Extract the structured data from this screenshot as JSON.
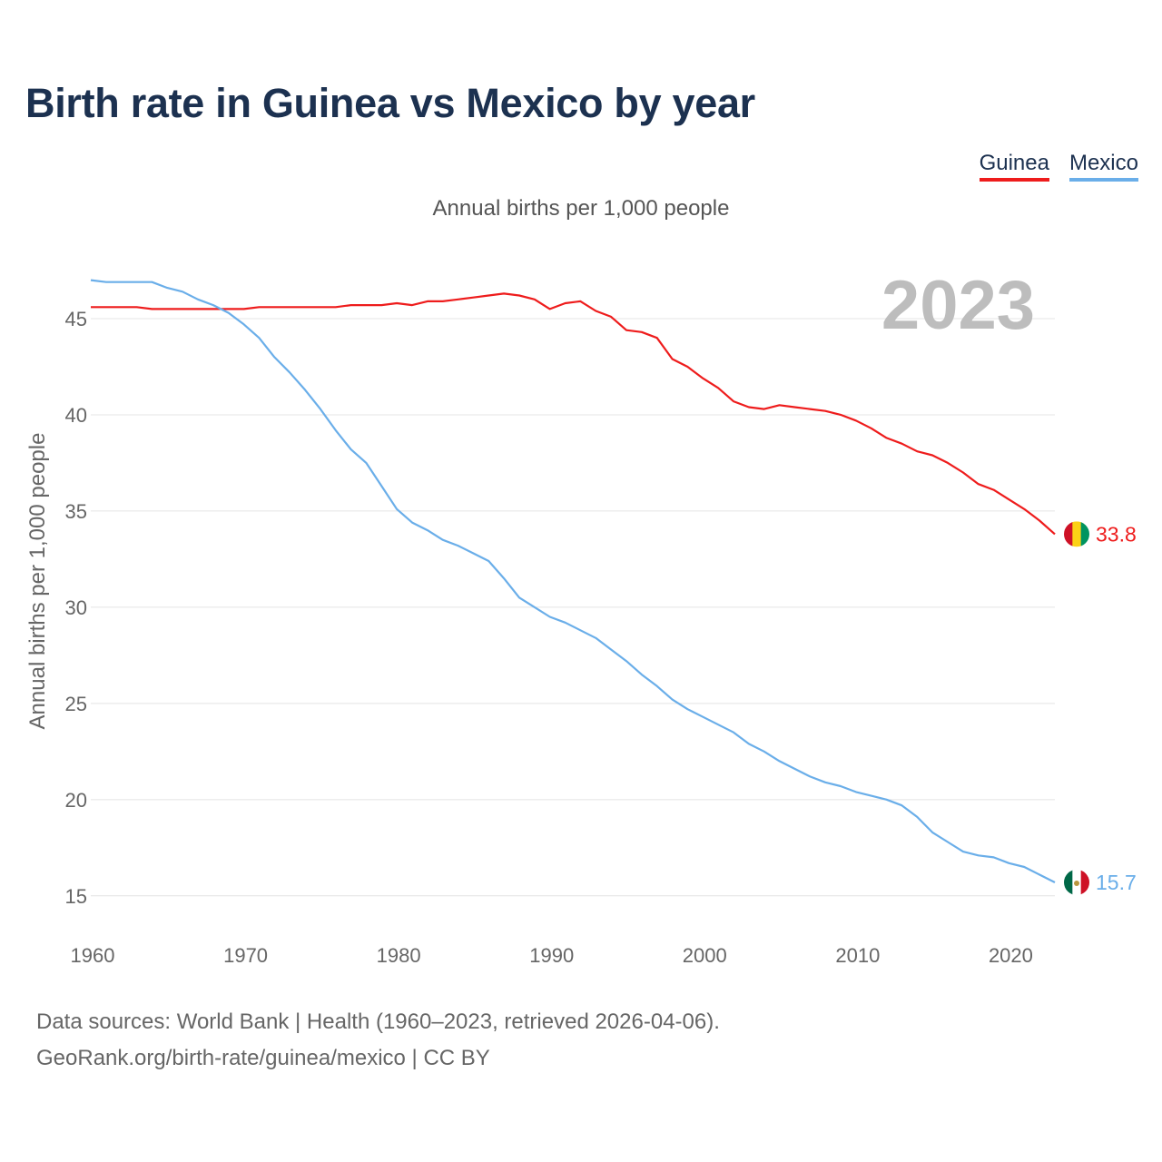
{
  "title": "Birth rate in Guinea vs Mexico by year",
  "subtitle": "Annual births per 1,000 people",
  "legend": [
    {
      "name": "Guinea",
      "color": "#ee1c1c"
    },
    {
      "name": "Mexico",
      "color": "#6aaee9"
    }
  ],
  "footer": {
    "line1": "Data sources: World Bank | Health (1960–2023, retrieved 2026-04-06).",
    "line2": "GeoRank.org/birth-rate/guinea/mexico | CC BY"
  },
  "chart_data": {
    "type": "line",
    "title": "Birth rate in Guinea vs Mexico by year",
    "subtitle": "Annual births per 1,000 people",
    "xlabel": "",
    "ylabel": "Annual births per 1,000 people",
    "xlim": [
      1960,
      2023
    ],
    "ylim": [
      15,
      47
    ],
    "x_ticks": [
      1960,
      1970,
      1980,
      1990,
      2000,
      2010,
      2020
    ],
    "y_ticks": [
      15,
      20,
      25,
      30,
      35,
      40,
      45
    ],
    "grid": true,
    "legend_position": "top-right",
    "current_year": "2023",
    "x": [
      1960,
      1961,
      1962,
      1963,
      1964,
      1965,
      1966,
      1967,
      1968,
      1969,
      1970,
      1971,
      1972,
      1973,
      1974,
      1975,
      1976,
      1977,
      1978,
      1979,
      1980,
      1981,
      1982,
      1983,
      1984,
      1985,
      1986,
      1987,
      1988,
      1989,
      1990,
      1991,
      1992,
      1993,
      1994,
      1995,
      1996,
      1997,
      1998,
      1999,
      2000,
      2001,
      2002,
      2003,
      2004,
      2005,
      2006,
      2007,
      2008,
      2009,
      2010,
      2011,
      2012,
      2013,
      2014,
      2015,
      2016,
      2017,
      2018,
      2019,
      2020,
      2021,
      2022,
      2023
    ],
    "series": [
      {
        "name": "Guinea",
        "color": "#ee1c1c",
        "end_label": "33.8",
        "values": [
          45.6,
          45.6,
          45.6,
          45.6,
          45.5,
          45.5,
          45.5,
          45.5,
          45.5,
          45.5,
          45.5,
          45.6,
          45.6,
          45.6,
          45.6,
          45.6,
          45.6,
          45.7,
          45.7,
          45.7,
          45.8,
          45.7,
          45.9,
          45.9,
          46.0,
          46.1,
          46.2,
          46.3,
          46.2,
          46.0,
          45.5,
          45.8,
          45.9,
          45.4,
          45.1,
          44.4,
          44.3,
          44.0,
          42.9,
          42.5,
          41.9,
          41.4,
          40.7,
          40.4,
          40.3,
          40.5,
          40.4,
          40.3,
          40.2,
          40.0,
          39.7,
          39.3,
          38.8,
          38.5,
          38.1,
          37.9,
          37.5,
          37.0,
          36.4,
          36.1,
          35.6,
          35.1,
          34.5,
          33.8
        ]
      },
      {
        "name": "Mexico",
        "color": "#6aaee9",
        "end_label": "15.7",
        "values": [
          47.0,
          46.9,
          46.9,
          46.9,
          46.9,
          46.6,
          46.4,
          46.0,
          45.7,
          45.3,
          44.7,
          44.0,
          43.0,
          42.2,
          41.3,
          40.3,
          39.2,
          38.2,
          37.5,
          36.3,
          35.1,
          34.4,
          34.0,
          33.5,
          33.2,
          32.8,
          32.4,
          31.5,
          30.5,
          30.0,
          29.5,
          29.2,
          28.8,
          28.4,
          27.8,
          27.2,
          26.5,
          25.9,
          25.2,
          24.7,
          24.3,
          23.9,
          23.5,
          22.9,
          22.5,
          22.0,
          21.6,
          21.2,
          20.9,
          20.7,
          20.4,
          20.2,
          20.0,
          19.7,
          19.1,
          18.3,
          17.8,
          17.3,
          17.1,
          17.0,
          16.7,
          16.5,
          16.1,
          15.7
        ]
      }
    ]
  }
}
